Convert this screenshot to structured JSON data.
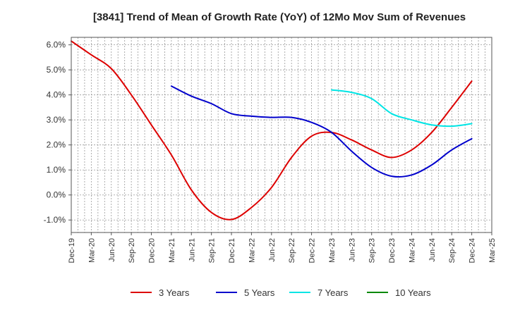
{
  "chart_data": {
    "type": "line",
    "title": "[3841]  Trend of Mean of Growth Rate (YoY) of 12Mo Mov Sum of Revenues",
    "xlabel": "",
    "ylabel": "",
    "x_tick_labels": [
      "Dec-19",
      "Mar-20",
      "Jun-20",
      "Sep-20",
      "Dec-20",
      "Mar-21",
      "Jun-21",
      "Sep-21",
      "Dec-21",
      "Mar-22",
      "Jun-22",
      "Sep-22",
      "Dec-22",
      "Mar-23",
      "Jun-23",
      "Sep-23",
      "Dec-23",
      "Mar-24",
      "Jun-24",
      "Sep-24",
      "Dec-24",
      "Mar-25"
    ],
    "y_tick_labels": [
      "6.0%",
      "5.0%",
      "4.0%",
      "3.0%",
      "2.0%",
      "1.0%",
      "0.0%",
      "-1.0%"
    ],
    "y_ticks": [
      6,
      5,
      4,
      3,
      2,
      1,
      0,
      -1
    ],
    "ylim": [
      -1.5,
      6.3
    ],
    "x_range_quarters": [
      0,
      21
    ],
    "grid": true,
    "legend_position": "bottom",
    "series": [
      {
        "name": "3 Years",
        "color": "#dd0000",
        "points": [
          [
            0,
            6.15
          ],
          [
            1,
            5.6
          ],
          [
            2,
            5.05
          ],
          [
            3,
            4.0
          ],
          [
            4,
            2.8
          ],
          [
            5,
            1.6
          ],
          [
            6,
            0.2
          ],
          [
            7,
            -0.7
          ],
          [
            8,
            -0.98
          ],
          [
            9,
            -0.5
          ],
          [
            10,
            0.3
          ],
          [
            11,
            1.5
          ],
          [
            12,
            2.35
          ],
          [
            13,
            2.5
          ],
          [
            14,
            2.2
          ],
          [
            15,
            1.8
          ],
          [
            16,
            1.5
          ],
          [
            17,
            1.8
          ],
          [
            18,
            2.5
          ],
          [
            19,
            3.5
          ],
          [
            20,
            4.55
          ]
        ]
      },
      {
        "name": "5 Years",
        "color": "#0000cc",
        "points": [
          [
            5,
            4.35
          ],
          [
            6,
            3.95
          ],
          [
            7,
            3.65
          ],
          [
            8,
            3.25
          ],
          [
            9,
            3.15
          ],
          [
            10,
            3.1
          ],
          [
            11,
            3.1
          ],
          [
            12,
            2.9
          ],
          [
            13,
            2.5
          ],
          [
            14,
            1.75
          ],
          [
            15,
            1.1
          ],
          [
            16,
            0.75
          ],
          [
            17,
            0.8
          ],
          [
            18,
            1.2
          ],
          [
            19,
            1.8
          ],
          [
            20,
            2.25
          ]
        ]
      },
      {
        "name": "7 Years",
        "color": "#00e5e5",
        "points": [
          [
            13,
            4.2
          ],
          [
            14,
            4.1
          ],
          [
            15,
            3.85
          ],
          [
            16,
            3.25
          ],
          [
            17,
            3.0
          ],
          [
            18,
            2.8
          ],
          [
            19,
            2.75
          ],
          [
            20,
            2.85
          ]
        ]
      },
      {
        "name": "10 Years",
        "color": "#008800",
        "points": []
      }
    ]
  }
}
